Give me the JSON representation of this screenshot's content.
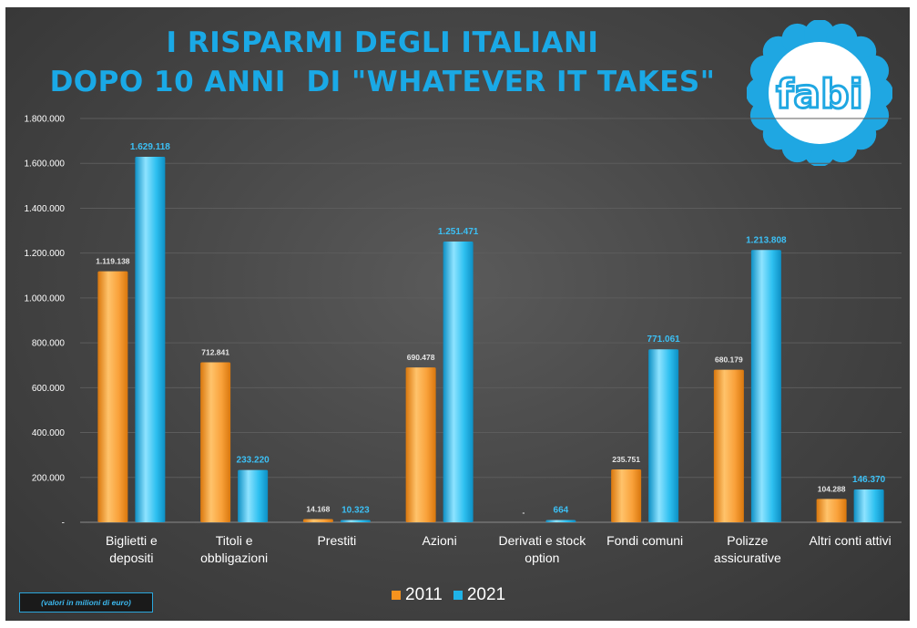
{
  "title": {
    "line1": "I RISPARMI DEGLI ITALIANI",
    "line2": "DOPO 10 ANNI  DI \"WHATEVER IT TAKES\""
  },
  "logo": {
    "text": "fabi",
    "icon": "daisy-logo-icon"
  },
  "note": "(valori in milioni di euro)",
  "colors": {
    "series_2011": "#f7931e",
    "series_2021": "#1fb3e8",
    "title": "#1aa9e6",
    "background": "#444444"
  },
  "chart_data": {
    "type": "bar",
    "categories": [
      [
        "Biglietti e",
        "depositi"
      ],
      [
        "Titoli e",
        "obbligazioni"
      ],
      [
        "Prestiti"
      ],
      [
        "Azioni"
      ],
      [
        "Derivati e stock",
        "option"
      ],
      [
        "Fondi comuni"
      ],
      [
        "Polizze",
        "assicurative"
      ],
      [
        "Altri conti attivi"
      ]
    ],
    "series": [
      {
        "name": "2011",
        "values": [
          1119138,
          712841,
          14168,
          690478,
          0,
          235751,
          680179,
          104288
        ],
        "labels": [
          "1.119.138",
          "712.841",
          "14.168",
          "690.478",
          "-",
          "235.751",
          "680.179",
          "104.288"
        ]
      },
      {
        "name": "2021",
        "values": [
          1629118,
          233220,
          10323,
          1251471,
          664,
          771061,
          1213808,
          146370
        ],
        "labels": [
          "1.629.118",
          "233.220",
          "10.323",
          "1.251.471",
          "664",
          "771.061",
          "1.213.808",
          "146.370"
        ]
      }
    ],
    "y_ticks": [
      0,
      200000,
      400000,
      600000,
      800000,
      1000000,
      1200000,
      1400000,
      1600000,
      1800000
    ],
    "y_tick_labels": [
      "-",
      "200.000",
      "400.000",
      "600.000",
      "800.000",
      "1.000.000",
      "1.200.000",
      "1.400.000",
      "1.600.000",
      "1.800.000"
    ],
    "ylim": [
      0,
      1800000
    ],
    "grid": true,
    "legend": "bottom-center"
  }
}
